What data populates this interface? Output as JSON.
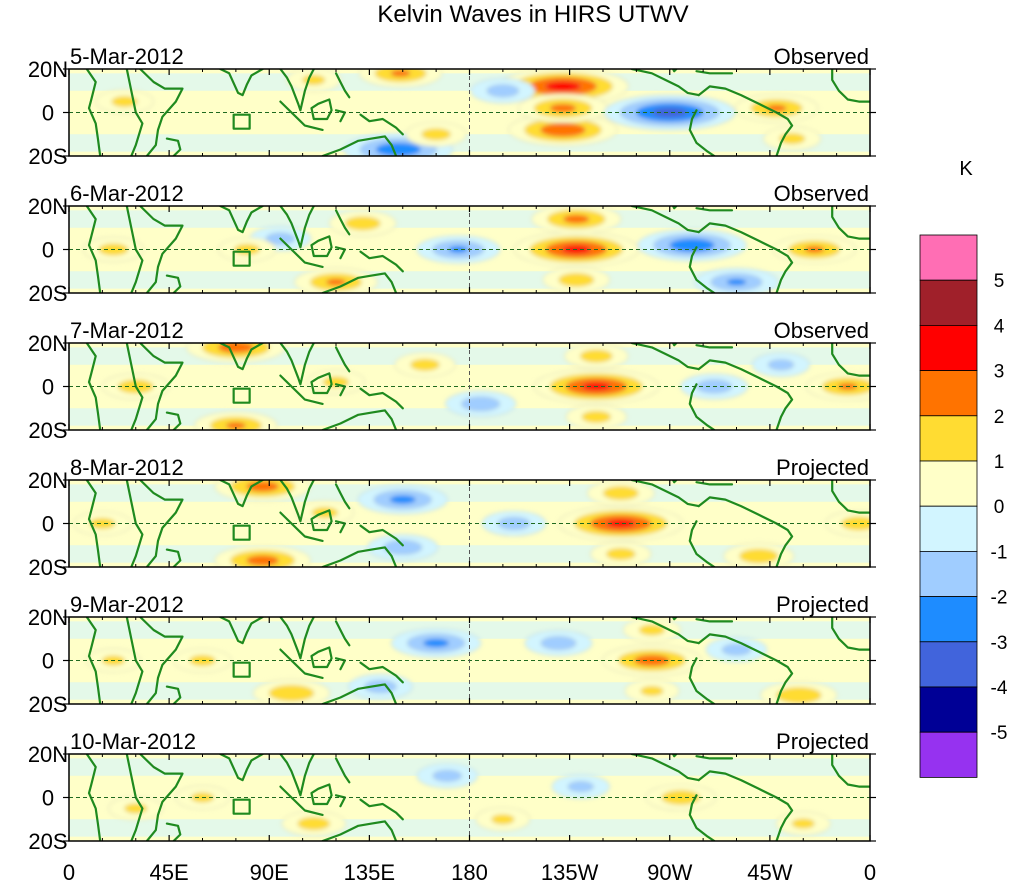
{
  "chart_data": {
    "type": "heatmap",
    "title": "Kelvin Waves in HIRS UTWV",
    "x_ticks": [
      "0",
      "45E",
      "90E",
      "135E",
      "180",
      "135W",
      "90W",
      "45W",
      "0"
    ],
    "x_tick_lon": [
      0,
      45,
      90,
      135,
      180,
      225,
      270,
      315,
      360
    ],
    "y_ticks": [
      "20N",
      "0",
      "20S"
    ],
    "y_tick_lat": [
      20,
      0,
      -20
    ],
    "lat_range": [
      -20,
      20
    ],
    "lon_range": [
      0,
      360
    ],
    "colorbar": {
      "unit": "K",
      "levels": [
        "5",
        "4",
        "3",
        "2",
        "1",
        "0",
        "-1",
        "-2",
        "-3",
        "-4",
        "-5"
      ],
      "colors": [
        "#ff6eb4",
        "#a0202a",
        "#ff0000",
        "#ff7300",
        "#ffdc32",
        "#ffffc8",
        "#d2f5ff",
        "#a0cdff",
        "#1e8cff",
        "#4164dc",
        "#000096",
        "#9632f0"
      ]
    },
    "panels": [
      {
        "date": "5-Mar-2012",
        "status": "Observed",
        "anomalies": [
          {
            "lon": 222,
            "lat": 12,
            "value": 3.5
          },
          {
            "lon": 222,
            "lat": -8,
            "value": 2.8
          },
          {
            "lon": 222,
            "lat": 2,
            "value": 2.2
          },
          {
            "lon": 270,
            "lat": 0,
            "value": -3.5
          },
          {
            "lon": 318,
            "lat": 2,
            "value": 2.0
          },
          {
            "lon": 148,
            "lat": -17,
            "value": -2.8
          },
          {
            "lon": 149,
            "lat": 18,
            "value": 2.0
          },
          {
            "lon": 25,
            "lat": 5,
            "value": 1.2
          },
          {
            "lon": 110,
            "lat": 15,
            "value": 1.1
          },
          {
            "lon": 195,
            "lat": 10,
            "value": -1.4
          },
          {
            "lon": 165,
            "lat": -10,
            "value": 1.3
          },
          {
            "lon": 325,
            "lat": -12,
            "value": 1.2
          }
        ]
      },
      {
        "date": "6-Mar-2012",
        "status": "Observed",
        "anomalies": [
          {
            "lon": 228,
            "lat": 0,
            "value": 3.3
          },
          {
            "lon": 228,
            "lat": 14,
            "value": 2.2
          },
          {
            "lon": 228,
            "lat": -14,
            "value": 1.5
          },
          {
            "lon": 280,
            "lat": 2,
            "value": -2.8
          },
          {
            "lon": 335,
            "lat": 0,
            "value": 2.0
          },
          {
            "lon": 120,
            "lat": -15,
            "value": 2.0
          },
          {
            "lon": 132,
            "lat": 12,
            "value": 1.5
          },
          {
            "lon": 20,
            "lat": 0,
            "value": 1.3
          },
          {
            "lon": 175,
            "lat": 0,
            "value": -2.0
          },
          {
            "lon": 300,
            "lat": -15,
            "value": -2.0
          },
          {
            "lon": 95,
            "lat": 5,
            "value": -1.3
          },
          {
            "lon": 80,
            "lat": 0,
            "value": 1.2
          }
        ]
      },
      {
        "date": "7-Mar-2012",
        "status": "Observed",
        "anomalies": [
          {
            "lon": 237,
            "lat": 0,
            "value": 3.3
          },
          {
            "lon": 237,
            "lat": 14,
            "value": 1.4
          },
          {
            "lon": 237,
            "lat": -14,
            "value": 1.3
          },
          {
            "lon": 75,
            "lat": 18,
            "value": 2.5
          },
          {
            "lon": 75,
            "lat": -18,
            "value": 2.0
          },
          {
            "lon": 350,
            "lat": 0,
            "value": 2.0
          },
          {
            "lon": 30,
            "lat": 0,
            "value": 1.5
          },
          {
            "lon": 160,
            "lat": 10,
            "value": 1.3
          },
          {
            "lon": 185,
            "lat": -8,
            "value": -1.6
          },
          {
            "lon": 290,
            "lat": 0,
            "value": -1.5
          },
          {
            "lon": 120,
            "lat": 2,
            "value": 1.2
          },
          {
            "lon": 320,
            "lat": 10,
            "value": -1.2
          }
        ]
      },
      {
        "date": "8-Mar-2012",
        "status": "Projected",
        "anomalies": [
          {
            "lon": 248,
            "lat": 0,
            "value": 3.3
          },
          {
            "lon": 248,
            "lat": 14,
            "value": 1.5
          },
          {
            "lon": 248,
            "lat": -14,
            "value": 1.3
          },
          {
            "lon": 87,
            "lat": 17,
            "value": 2.4
          },
          {
            "lon": 87,
            "lat": -17,
            "value": 2.4
          },
          {
            "lon": 150,
            "lat": 11,
            "value": -2.2
          },
          {
            "lon": 150,
            "lat": -11,
            "value": -1.6
          },
          {
            "lon": 15,
            "lat": 0,
            "value": 1.2
          },
          {
            "lon": 355,
            "lat": 0,
            "value": 1.5
          },
          {
            "lon": 200,
            "lat": 0,
            "value": -1.4
          },
          {
            "lon": 310,
            "lat": -15,
            "value": 1.6
          },
          {
            "lon": 115,
            "lat": 5,
            "value": 1.2
          }
        ]
      },
      {
        "date": "9-Mar-2012",
        "status": "Projected",
        "anomalies": [
          {
            "lon": 262,
            "lat": 0,
            "value": 2.5
          },
          {
            "lon": 262,
            "lat": 14,
            "value": 1.2
          },
          {
            "lon": 262,
            "lat": -14,
            "value": 1.1
          },
          {
            "lon": 100,
            "lat": -15,
            "value": 1.8
          },
          {
            "lon": 60,
            "lat": 0,
            "value": 1.2
          },
          {
            "lon": 165,
            "lat": 8,
            "value": -2.2
          },
          {
            "lon": 220,
            "lat": 8,
            "value": -1.5
          },
          {
            "lon": 328,
            "lat": -16,
            "value": 1.8
          },
          {
            "lon": 20,
            "lat": 0,
            "value": 1.1
          },
          {
            "lon": 140,
            "lat": -12,
            "value": -1.4
          },
          {
            "lon": 300,
            "lat": 5,
            "value": -1.3
          }
        ]
      },
      {
        "date": "10-Mar-2012",
        "status": "Projected",
        "anomalies": [
          {
            "lon": 275,
            "lat": 0,
            "value": 1.6
          },
          {
            "lon": 110,
            "lat": -12,
            "value": 1.4
          },
          {
            "lon": 170,
            "lat": 10,
            "value": -1.3
          },
          {
            "lon": 230,
            "lat": 5,
            "value": -1.2
          },
          {
            "lon": 60,
            "lat": 0,
            "value": 1.1
          },
          {
            "lon": 30,
            "lat": -5,
            "value": 1.1
          },
          {
            "lon": 330,
            "lat": -12,
            "value": 1.1
          },
          {
            "lon": 195,
            "lat": -10,
            "value": 1.1
          }
        ]
      }
    ]
  }
}
